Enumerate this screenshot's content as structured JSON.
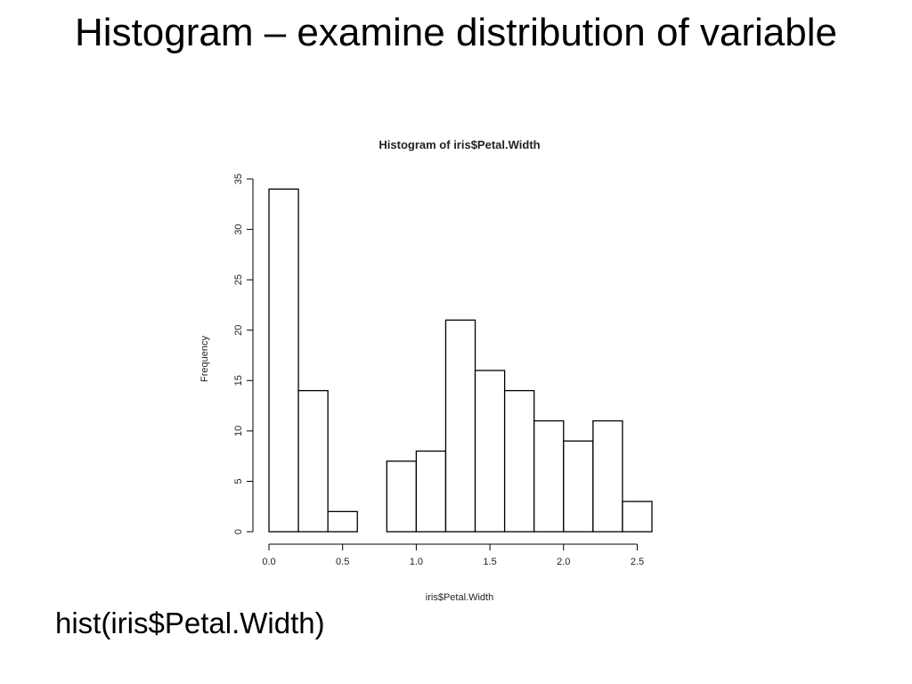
{
  "slide": {
    "title": "Histogram – examine distribution of variable",
    "caption": "hist(iris$Petal.Width)"
  },
  "chart_data": {
    "type": "bar",
    "title": "Histogram of iris$Petal.Width",
    "xlabel": "iris$Petal.Width",
    "ylabel": "Frequency",
    "bin_edges": [
      0.0,
      0.2,
      0.4,
      0.6,
      0.8,
      1.0,
      1.2,
      1.4,
      1.6,
      1.8,
      2.0,
      2.2,
      2.4,
      2.6
    ],
    "values": [
      34,
      14,
      2,
      0,
      7,
      8,
      21,
      16,
      14,
      11,
      9,
      11,
      3
    ],
    "xlim": [
      0.0,
      2.6
    ],
    "ylim": [
      0,
      35
    ],
    "x_ticks": [
      0.0,
      0.5,
      1.0,
      1.5,
      2.0,
      2.5
    ],
    "x_tick_labels": [
      "0.0",
      "0.5",
      "1.0",
      "1.5",
      "2.0",
      "2.5"
    ],
    "y_ticks": [
      0,
      5,
      10,
      15,
      20,
      25,
      30,
      35
    ],
    "y_tick_labels": [
      "0",
      "5",
      "10",
      "15",
      "20",
      "25",
      "30",
      "35"
    ],
    "grid": false,
    "bar_fill": "#ffffff",
    "bar_stroke": "#000000"
  }
}
